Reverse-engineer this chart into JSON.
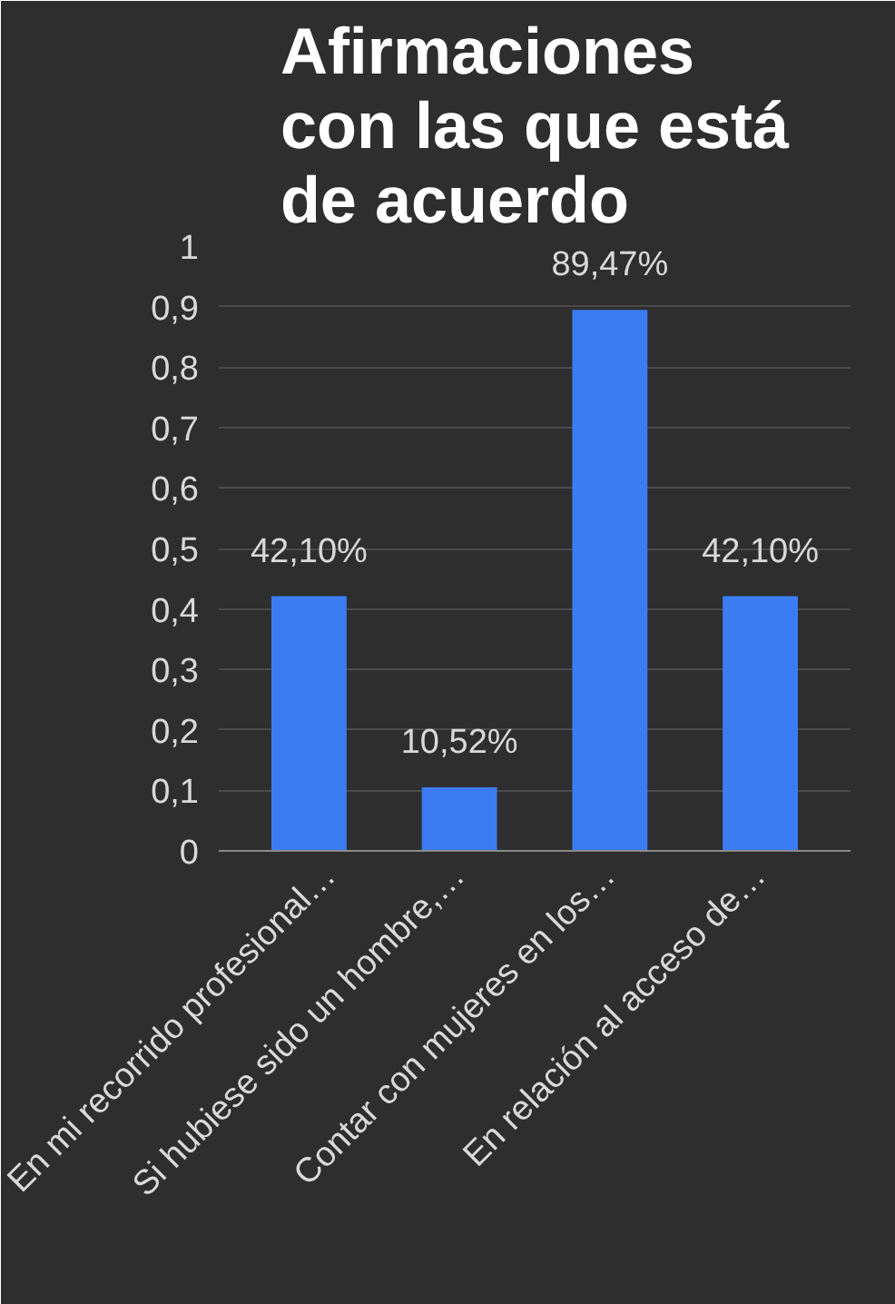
{
  "chart_data": {
    "type": "bar",
    "title": "Afirmaciones\ncon las que está\nde acuerdo",
    "categories": [
      "En mi recorrido profesional…",
      "Si hubiese sido un hombre,…",
      "Contar con mujeres en los…",
      "En relación al acceso de…"
    ],
    "values": [
      0.421,
      0.1052,
      0.8947,
      0.421
    ],
    "value_labels": [
      "42,10%",
      "10,52%",
      "89,47%",
      "42,10%"
    ],
    "color": "#3b7cf2",
    "ylim": [
      0,
      1
    ],
    "yticks": [
      0,
      {
        "value": 0.1,
        "label": "0,1"
      },
      {
        "value": 0.2,
        "label": "0,2"
      },
      {
        "value": 0.3,
        "label": "0,3"
      },
      {
        "value": 0.4,
        "label": "0,4"
      },
      {
        "value": 0.5,
        "label": "0,5"
      },
      {
        "value": 0.6,
        "label": "0,6"
      },
      {
        "value": 0.7,
        "label": "0,7"
      },
      {
        "value": 0.8,
        "label": "0,8"
      },
      {
        "value": 0.9,
        "label": "0,9"
      },
      1
    ],
    "grid": "y"
  }
}
